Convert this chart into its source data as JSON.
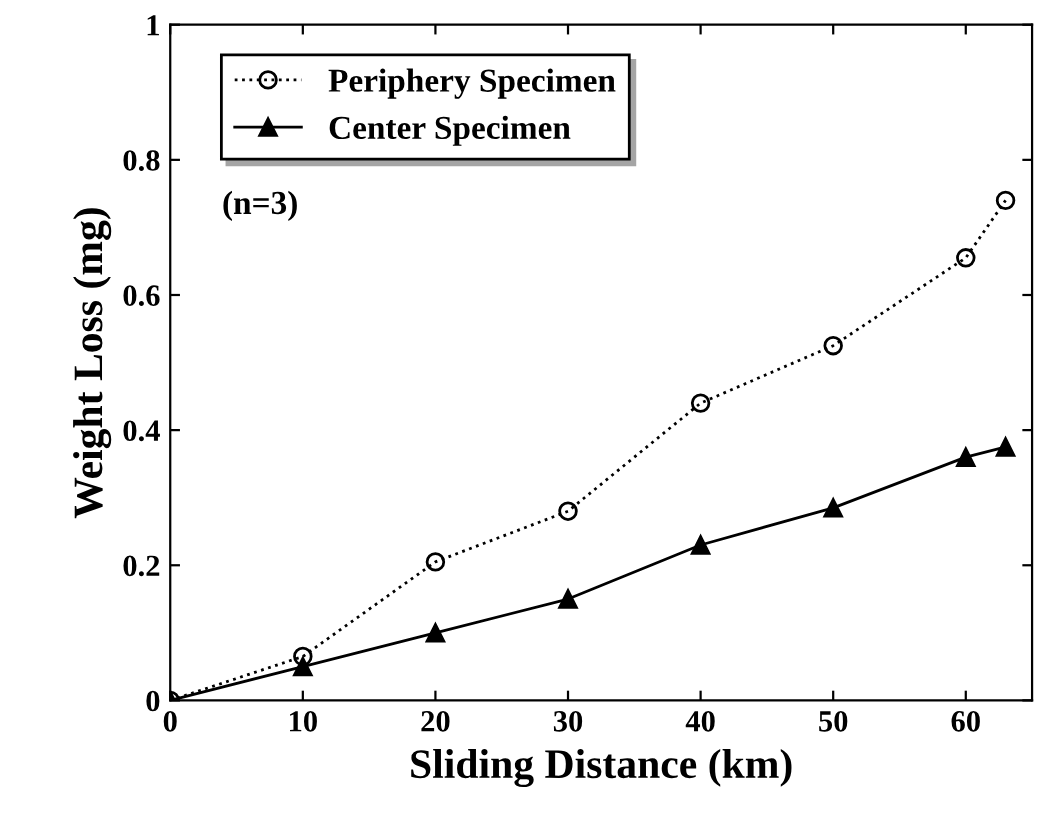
{
  "chart_data": {
    "type": "line",
    "xlabel": "Sliding Distance (km)",
    "ylabel": "Weight Loss (mg)",
    "xlim": [
      0,
      65
    ],
    "xticks": [
      0,
      10,
      20,
      30,
      40,
      50,
      60
    ],
    "ylim": [
      0,
      1
    ],
    "yticks": [
      0,
      0.2,
      0.4,
      0.6,
      0.8,
      1
    ],
    "grid": false,
    "legend": "top left",
    "annotations": [
      "(n=3)"
    ],
    "series": [
      {
        "name": "Periphery Specimen",
        "color": "#000000",
        "marker": "circle",
        "line_style": "dotted",
        "x": [
          0,
          10,
          20,
          30,
          40,
          50,
          60,
          63
        ],
        "values": [
          0,
          0.065,
          0.205,
          0.28,
          0.44,
          0.525,
          0.655,
          0.74
        ]
      },
      {
        "name": "Center Specimen",
        "color": "#000000",
        "marker": "triangle",
        "line_style": "solid",
        "x": [
          0,
          10,
          20,
          30,
          40,
          50,
          60,
          63
        ],
        "values": [
          0,
          0.05,
          0.1,
          0.15,
          0.23,
          0.285,
          0.36,
          0.375
        ]
      }
    ]
  }
}
